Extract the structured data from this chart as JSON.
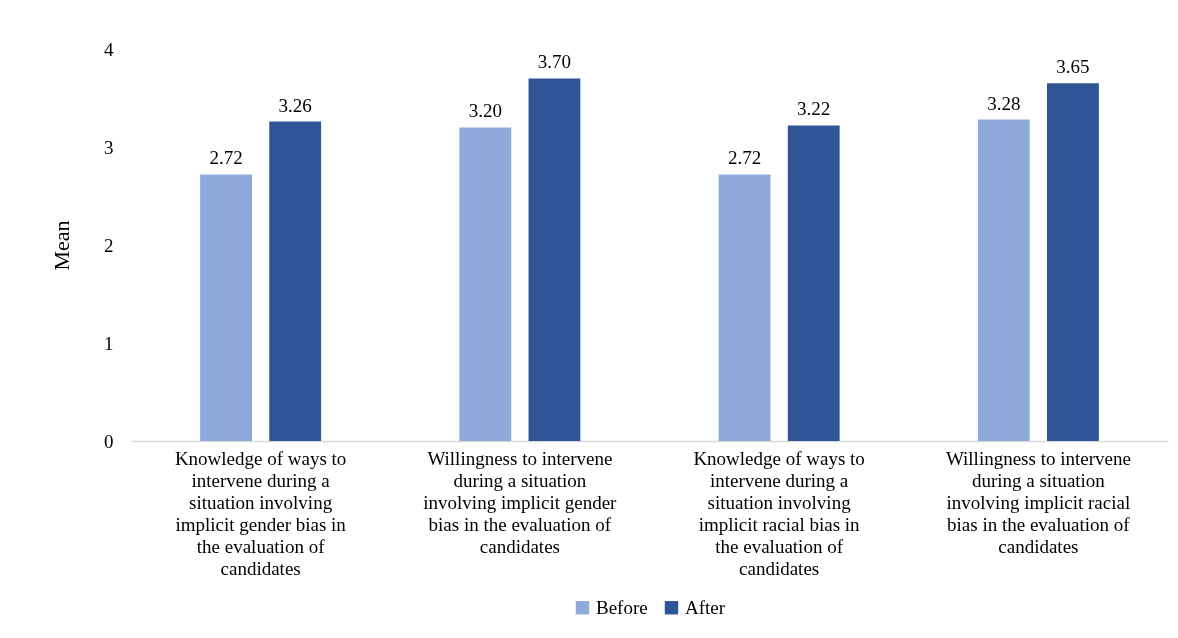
{
  "chart_data": {
    "type": "bar",
    "ylabel": "Mean",
    "categories": [
      "Knowledge of ways to intervene during a situation involving implicit gender bias in the evaluation of candidates",
      "Willingness to intervene during a situation involving implicit gender bias in the evaluation of candidates",
      "Knowledge of ways to intervene during a situation involving implicit racial bias in the evaluation of candidates",
      "Willingness to intervene during a situation involving implicit racial bias in the evaluation of candidates"
    ],
    "series": [
      {
        "name": "Before",
        "color": "#8eaadb",
        "values": [
          2.72,
          3.2,
          2.72,
          3.28
        ],
        "value_labels": [
          "2.72",
          "3.20",
          "2.72",
          "3.28"
        ]
      },
      {
        "name": "After",
        "color": "#2f5597",
        "values": [
          3.26,
          3.7,
          3.22,
          3.65
        ],
        "value_labels": [
          "3.26",
          "3.70",
          "3.22",
          "3.65"
        ]
      }
    ],
    "ylim": [
      0,
      4
    ],
    "yticks": [
      0,
      1,
      2,
      3,
      4
    ],
    "grid": false,
    "legend": "bottom"
  }
}
